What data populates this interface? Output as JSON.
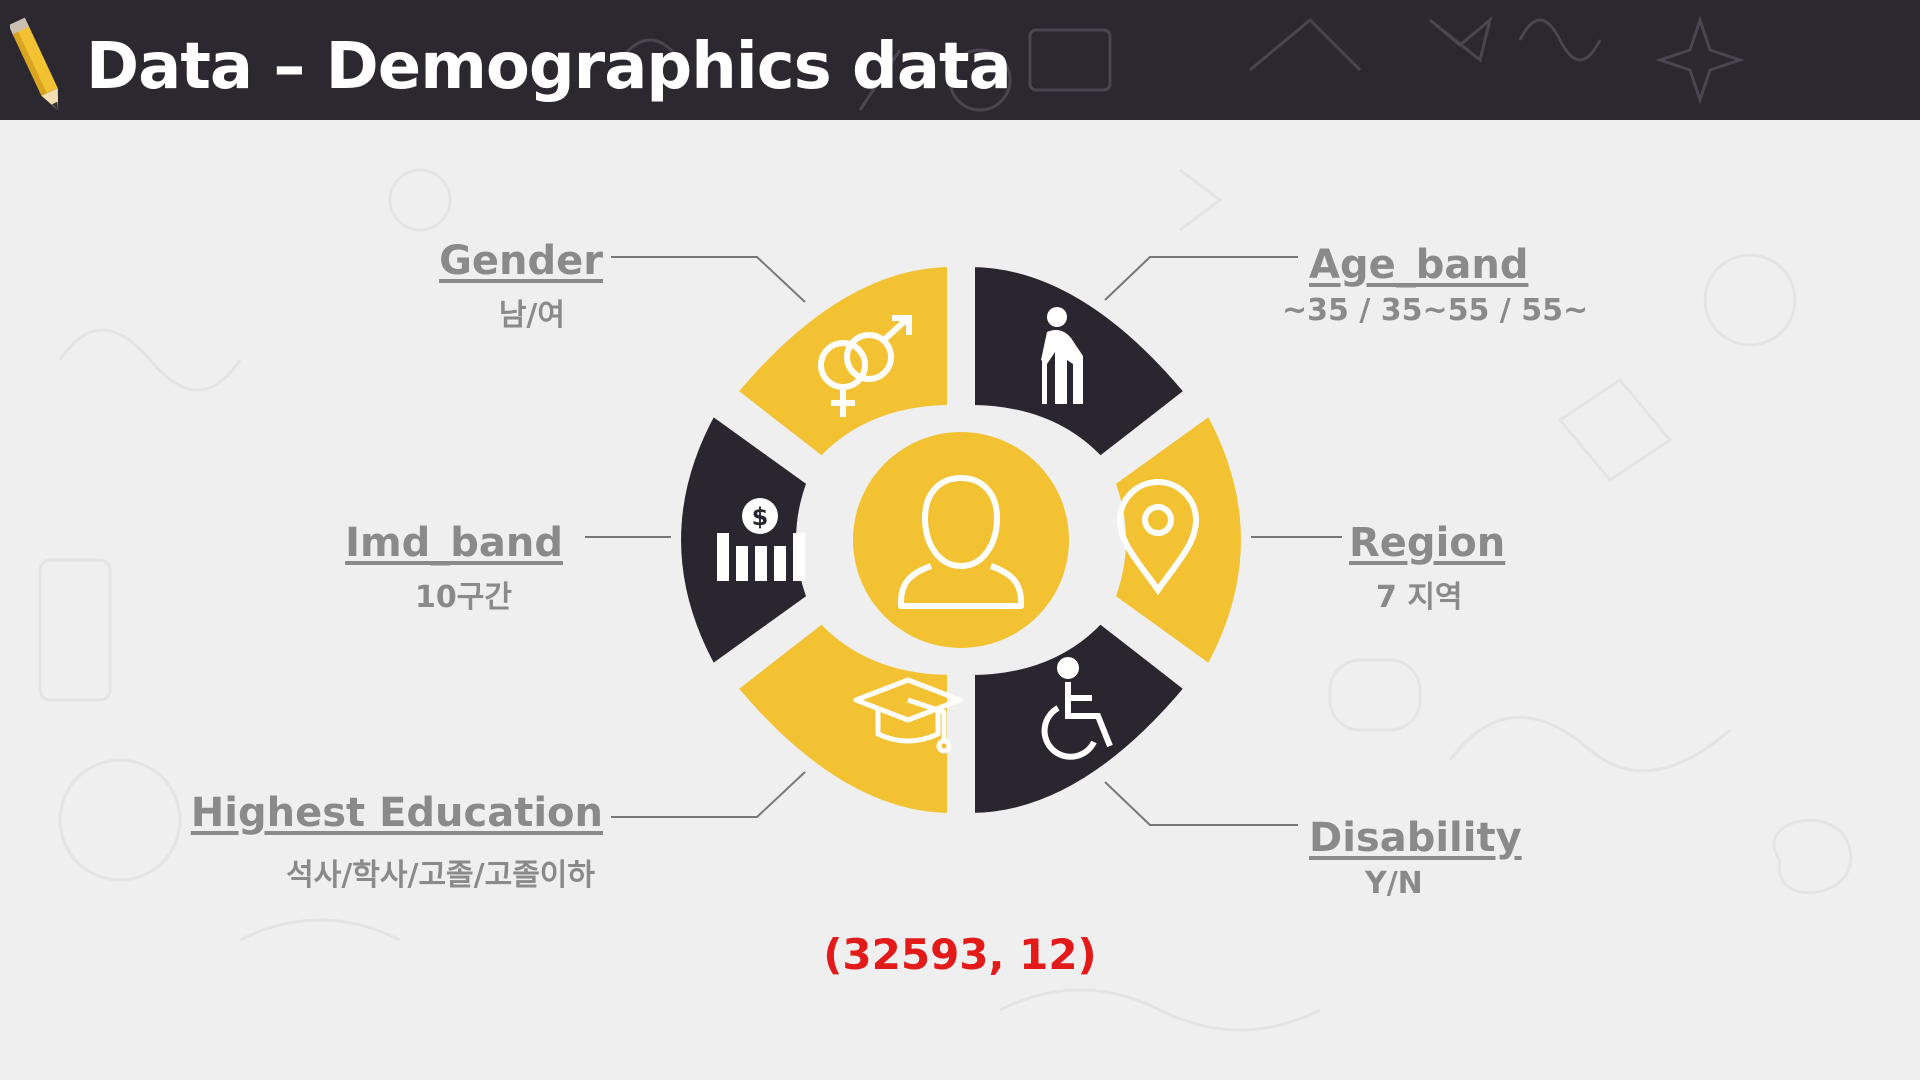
{
  "header": {
    "title": "Data – Demographics data"
  },
  "segments": [
    {
      "title": "Gender",
      "sub": "남/여",
      "icon": "gender-icon"
    },
    {
      "title": "Age_band",
      "sub": "~35 / 35~55 / 55~",
      "icon": "elderly-person-icon"
    },
    {
      "title": "Imd_band",
      "sub": "10구간",
      "icon": "money-bars-icon"
    },
    {
      "title": "Region",
      "sub": "7 지역",
      "icon": "location-pin-icon"
    },
    {
      "title": "Highest Education",
      "sub": "석사/학사/고졸/고졸이하",
      "icon": "graduation-cap-icon"
    },
    {
      "title": "Disability",
      "sub": "Y/N",
      "icon": "wheelchair-icon"
    }
  ],
  "center_icon": "person-icon",
  "shape_text": "(32593, 12)",
  "colors": {
    "yellow": "#f3c232",
    "dark": "#2a2630",
    "header": "#2c2830",
    "label": "#8a8a8a",
    "red": "#e21a1a"
  }
}
